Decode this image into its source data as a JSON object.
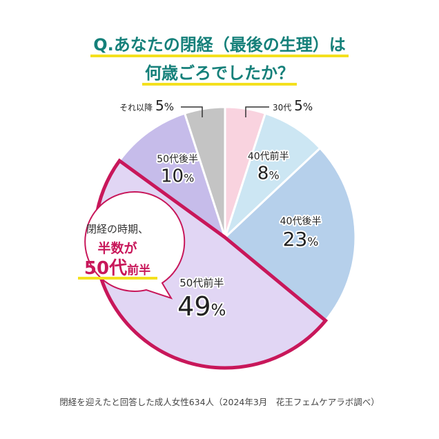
{
  "header": {
    "title_line1": "Q.あなたの閉経（最後の生理）は",
    "title_line2": "何歳ごろでしたか？"
  },
  "callout": {
    "line1": "閉経の時期、",
    "line2": "半数が",
    "line3_main": "50代",
    "line3_sub": "前半"
  },
  "source": "閉経を迎えたと回答した成人女性634人（2024年3月　花王フェムケアラボ調べ）",
  "chart_data": {
    "type": "pie",
    "title": "Q.あなたの閉経（最後の生理）は何歳ごろでしたか？",
    "categories": [
      "30代",
      "40代前半",
      "40代後半",
      "50代前半",
      "50代後半",
      "それ以降"
    ],
    "values": [
      5,
      8,
      23,
      49,
      10,
      5
    ],
    "unit": "%",
    "colors": [
      "#f9d3df",
      "#cce6f3",
      "#b6d0eb",
      "#e1d6f4",
      "#c6bcea",
      "#c4c4c4"
    ],
    "highlight": {
      "category": "50代前半",
      "color": "#c8175a"
    },
    "start": "12 o'clock, clockwise"
  }
}
